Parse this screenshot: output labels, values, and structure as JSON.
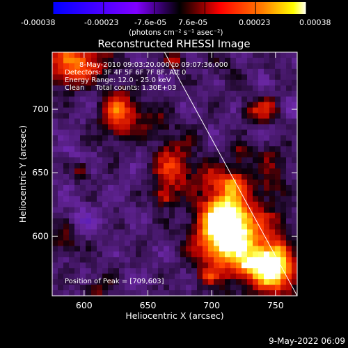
{
  "colorbar": {
    "tick_labels": [
      "-0.00038",
      "-0.00023",
      "-7.6e-05",
      "7.6e-05",
      "0.00023",
      "0.00038"
    ],
    "unit_label": "(photons cm⁻² s⁻¹ asec⁻²)",
    "range": [
      -0.00038,
      0.00038
    ]
  },
  "chart_data": {
    "type": "heatmap",
    "title": "Reconstructed RHESSI Image",
    "xlabel": "Heliocentric X (arcsec)",
    "ylabel": "Heliocentric Y (arcsec)",
    "xlim": [
      575,
      767
    ],
    "ylim": [
      553,
      745
    ],
    "x_ticks": [
      600,
      650,
      700,
      750
    ],
    "y_ticks": [
      600,
      650,
      700
    ],
    "x_tick_labels": [
      "600",
      "650",
      "700",
      "750"
    ],
    "y_tick_labels": [
      "600",
      "650",
      "700"
    ],
    "annotations": [
      "8-May-2010 09:03:20.000 to 09:07:36.000",
      "Detectors: 3F 4F 5F 6F 7F 8F, Att 0",
      "Energy Range: 12.0 - 25.0 keV",
      "Clean     Total counts: 1.30E+03"
    ],
    "peak_label": "Position of Peak = [709,603]",
    "peak_position": [
      709,
      603
    ],
    "limb_line": [
      [
        663,
        745
      ],
      [
        767,
        553
      ]
    ],
    "colormap": "blue-purple-black-red-orange-yellow-white",
    "grid": false
  },
  "footer": {
    "date": "9-May-2022 06:09"
  }
}
